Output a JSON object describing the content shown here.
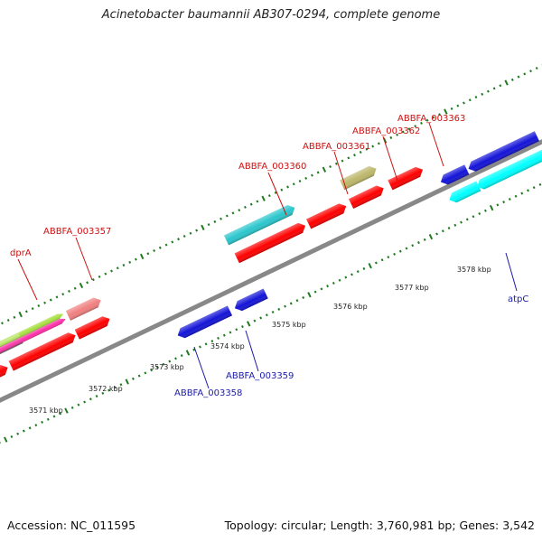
{
  "title": "Acinetobacter baumannii AB307-0294, complete genome",
  "footer": {
    "accession": "Accession: NC_011595",
    "summary": "Topology: circular; Length: 3,760,981 bp; Genes: 3,542"
  },
  "colors": {
    "backbone": "#888888",
    "tick": "#1f7a1f",
    "forward_label": "#cc1111",
    "reverse_label": "#1a1aaa"
  },
  "kbp_labels": [
    "3571 kbp",
    "3572 kbp",
    "3573 kbp",
    "3574 kbp",
    "3575 kbp",
    "3576 kbp",
    "3577 kbp",
    "3578 kbp"
  ],
  "gene_labels": {
    "dprA": "dprA",
    "g3357": "ABBFA_003357",
    "g3360": "ABBFA_003360",
    "g3361": "ABBFA_003361",
    "g3362": "ABBFA_003362",
    "g3363": "ABBFA_003363",
    "g3358": "ABBFA_003358",
    "g3359": "ABBFA_003359",
    "atpC": "atpC"
  }
}
